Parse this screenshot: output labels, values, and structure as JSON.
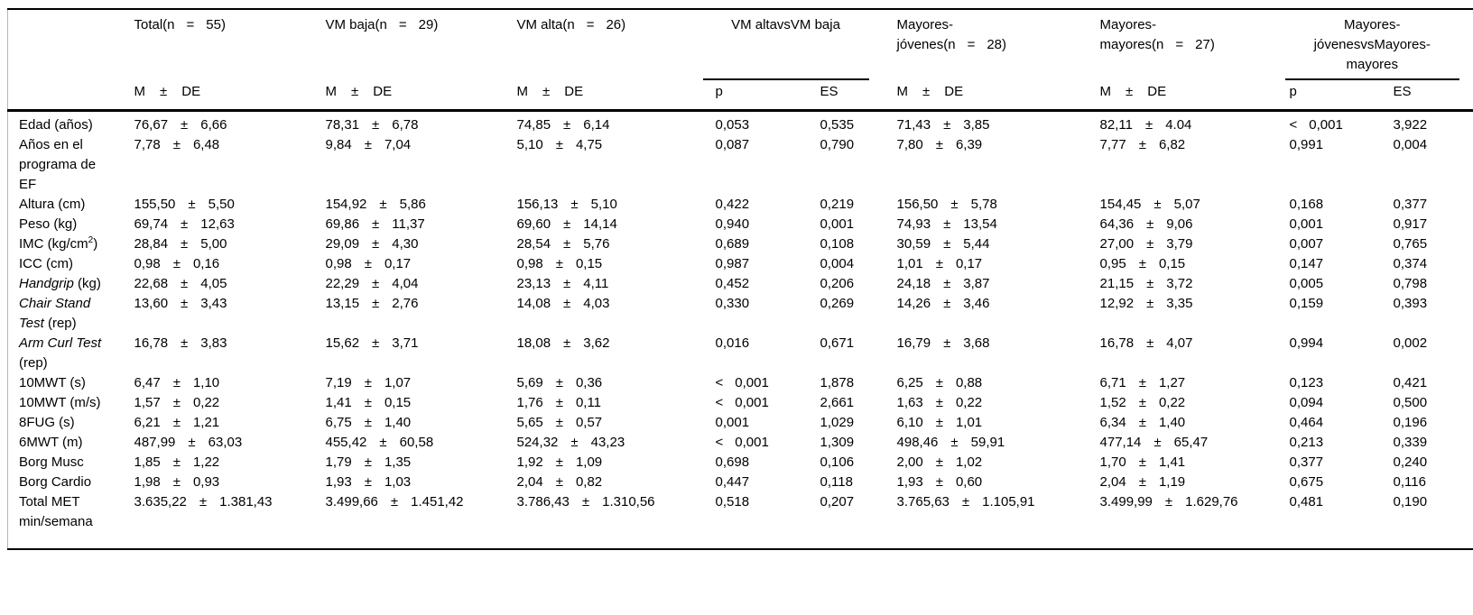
{
  "header": {
    "pm": "±",
    "stat_sub": [
      "M",
      "±",
      "DE"
    ],
    "comp_sub": [
      "p",
      "ES"
    ],
    "groups": {
      "total": {
        "lines": [
          [
            "Total(n",
            "=",
            "55)"
          ]
        ]
      },
      "vm_baja": {
        "lines": [
          [
            "VM baja(n",
            "=",
            "29)"
          ]
        ]
      },
      "vm_alta": {
        "lines": [
          [
            "VM alta(n",
            "=",
            "26)"
          ]
        ]
      },
      "comp1": {
        "lines": [
          [
            "VM altavsVM baja"
          ]
        ]
      },
      "mayores_jovenes": {
        "lines": [
          [
            "Mayores-"
          ],
          [
            "jóvenes(n",
            "=",
            "28)"
          ]
        ]
      },
      "mayores_mayores": {
        "lines": [
          [
            "Mayores-"
          ],
          [
            "mayores(n",
            "=",
            "27)"
          ]
        ]
      },
      "comp2": {
        "lines": [
          [
            "Mayores-"
          ],
          [
            "jóvenesvsMayores-"
          ],
          [
            "mayores"
          ]
        ]
      }
    }
  },
  "rows": [
    {
      "label": [
        {
          "t": "Edad (años)"
        }
      ],
      "stats": [
        {
          "m": "76,67",
          "sd": "6,66"
        },
        {
          "m": "78,31",
          "sd": "6,78"
        },
        {
          "m": "74,85",
          "sd": "6,14"
        },
        {
          "m": "71,43",
          "sd": "3,85"
        },
        {
          "m": "82,11",
          "sd": "4.04"
        }
      ],
      "comp1": {
        "p": "0,053",
        "es": "0,535"
      },
      "comp2": {
        "p": "< 0,001",
        "es": "3,922"
      }
    },
    {
      "label": [
        {
          "t": "Años en el programa de EF"
        }
      ],
      "stats": [
        {
          "m": "7,78",
          "sd": "6,48"
        },
        {
          "m": "9,84",
          "sd": "7,04"
        },
        {
          "m": "5,10",
          "sd": "4,75"
        },
        {
          "m": "7,80",
          "sd": "6,39"
        },
        {
          "m": "7,77",
          "sd": "6,82"
        }
      ],
      "comp1": {
        "p": "0,087",
        "es": "0,790"
      },
      "comp2": {
        "p": "0,991",
        "es": "0,004"
      }
    },
    {
      "label": [
        {
          "t": "Altura (cm)"
        }
      ],
      "stats": [
        {
          "m": "155,50",
          "sd": "5,50"
        },
        {
          "m": "154,92",
          "sd": "5,86"
        },
        {
          "m": "156,13",
          "sd": "5,10"
        },
        {
          "m": "156,50",
          "sd": "5,78"
        },
        {
          "m": "154,45",
          "sd": "5,07"
        }
      ],
      "comp1": {
        "p": "0,422",
        "es": "0,219"
      },
      "comp2": {
        "p": "0,168",
        "es": "0,377"
      }
    },
    {
      "label": [
        {
          "t": "Peso (kg)"
        }
      ],
      "stats": [
        {
          "m": "69,74",
          "sd": "12,63"
        },
        {
          "m": "69,86",
          "sd": "11,37"
        },
        {
          "m": "69,60",
          "sd": "14,14"
        },
        {
          "m": "74,93",
          "sd": "13,54"
        },
        {
          "m": "64,36",
          "sd": "9,06"
        }
      ],
      "comp1": {
        "p": "0,940",
        "es": "0,001"
      },
      "comp2": {
        "p": "0,001",
        "es": "0,917"
      }
    },
    {
      "label": [
        {
          "t": "IMC (kg/cm"
        },
        {
          "t": "2",
          "sup": true
        },
        {
          "t": ")"
        }
      ],
      "stats": [
        {
          "m": "28,84",
          "sd": "5,00"
        },
        {
          "m": "29,09",
          "sd": "4,30"
        },
        {
          "m": "28,54",
          "sd": "5,76"
        },
        {
          "m": "30,59",
          "sd": "5,44"
        },
        {
          "m": "27,00",
          "sd": "3,79"
        }
      ],
      "comp1": {
        "p": "0,689",
        "es": "0,108"
      },
      "comp2": {
        "p": "0,007",
        "es": "0,765"
      }
    },
    {
      "label": [
        {
          "t": "ICC (cm)"
        }
      ],
      "stats": [
        {
          "m": "0,98",
          "sd": "0,16"
        },
        {
          "m": "0,98",
          "sd": "0,17"
        },
        {
          "m": "0,98",
          "sd": "0,15"
        },
        {
          "m": "1,01",
          "sd": "0,17"
        },
        {
          "m": "0,95",
          "sd": "0,15"
        }
      ],
      "comp1": {
        "p": "0,987",
        "es": "0,004"
      },
      "comp2": {
        "p": "0,147",
        "es": "0,374"
      }
    },
    {
      "label": [
        {
          "t": "Handgrip",
          "i": true
        },
        {
          "t": " (kg)"
        }
      ],
      "stats": [
        {
          "m": "22,68",
          "sd": "4,05"
        },
        {
          "m": "22,29",
          "sd": "4,04"
        },
        {
          "m": "23,13",
          "sd": "4,11"
        },
        {
          "m": "24,18",
          "sd": "3,87"
        },
        {
          "m": "21,15",
          "sd": "3,72"
        }
      ],
      "comp1": {
        "p": "0,452",
        "es": "0,206"
      },
      "comp2": {
        "p": "0,005",
        "es": "0,798"
      }
    },
    {
      "label": [
        {
          "t": "Chair Stand Test",
          "i": true
        },
        {
          "t": " (rep)"
        }
      ],
      "stats": [
        {
          "m": "13,60",
          "sd": "3,43"
        },
        {
          "m": "13,15",
          "sd": "2,76"
        },
        {
          "m": "14,08",
          "sd": "4,03"
        },
        {
          "m": "14,26",
          "sd": "3,46"
        },
        {
          "m": "12,92",
          "sd": "3,35"
        }
      ],
      "comp1": {
        "p": "0,330",
        "es": "0,269"
      },
      "comp2": {
        "p": "0,159",
        "es": "0,393"
      }
    },
    {
      "label": [
        {
          "t": "Arm Curl Test",
          "i": true
        },
        {
          "t": " (rep)"
        }
      ],
      "stats": [
        {
          "m": "16,78",
          "sd": "3,83"
        },
        {
          "m": "15,62",
          "sd": "3,71"
        },
        {
          "m": "18,08",
          "sd": "3,62"
        },
        {
          "m": "16,79",
          "sd": "3,68"
        },
        {
          "m": "16,78",
          "sd": "4,07"
        }
      ],
      "comp1": {
        "p": "0,016",
        "es": "0,671"
      },
      "comp2": {
        "p": "0,994",
        "es": "0,002"
      }
    },
    {
      "label": [
        {
          "t": "10MWT (s)"
        }
      ],
      "stats": [
        {
          "m": "6,47",
          "sd": "1,10"
        },
        {
          "m": "7,19",
          "sd": "1,07"
        },
        {
          "m": "5,69",
          "sd": "0,36"
        },
        {
          "m": "6,25",
          "sd": "0,88"
        },
        {
          "m": "6,71",
          "sd": "1,27"
        }
      ],
      "comp1": {
        "p": "< 0,001",
        "es": "1,878"
      },
      "comp2": {
        "p": "0,123",
        "es": "0,421"
      }
    },
    {
      "label": [
        {
          "t": "10MWT (m/s)"
        }
      ],
      "stats": [
        {
          "m": "1,57",
          "sd": "0,22"
        },
        {
          "m": "1,41",
          "sd": "0,15"
        },
        {
          "m": "1,76",
          "sd": "0,11"
        },
        {
          "m": "1,63",
          "sd": "0,22"
        },
        {
          "m": "1,52",
          "sd": "0,22"
        }
      ],
      "comp1": {
        "p": "< 0,001",
        "es": "2,661"
      },
      "comp2": {
        "p": "0,094",
        "es": "0,500"
      }
    },
    {
      "label": [
        {
          "t": "8FUG (s)"
        }
      ],
      "stats": [
        {
          "m": "6,21",
          "sd": "1,21"
        },
        {
          "m": "6,75",
          "sd": "1,40"
        },
        {
          "m": "5,65",
          "sd": "0,57"
        },
        {
          "m": "6,10",
          "sd": "1,01"
        },
        {
          "m": "6,34",
          "sd": "1,40"
        }
      ],
      "comp1": {
        "p": "0,001",
        "es": "1,029"
      },
      "comp2": {
        "p": "0,464",
        "es": "0,196"
      }
    },
    {
      "label": [
        {
          "t": "6MWT (m)"
        }
      ],
      "stats": [
        {
          "m": "487,99",
          "sd": "63,03"
        },
        {
          "m": "455,42",
          "sd": "60,58"
        },
        {
          "m": "524,32",
          "sd": "43,23"
        },
        {
          "m": "498,46",
          "sd": "59,91"
        },
        {
          "m": "477,14",
          "sd": "65,47"
        }
      ],
      "comp1": {
        "p": "< 0,001",
        "es": "1,309"
      },
      "comp2": {
        "p": "0,213",
        "es": "0,339"
      }
    },
    {
      "label": [
        {
          "t": "Borg Musc"
        }
      ],
      "stats": [
        {
          "m": "1,85",
          "sd": "1,22"
        },
        {
          "m": "1,79",
          "sd": "1,35"
        },
        {
          "m": "1,92",
          "sd": "1,09"
        },
        {
          "m": "2,00",
          "sd": "1,02"
        },
        {
          "m": "1,70",
          "sd": "1,41"
        }
      ],
      "comp1": {
        "p": "0,698",
        "es": "0,106"
      },
      "comp2": {
        "p": "0,377",
        "es": "0,240"
      }
    },
    {
      "label": [
        {
          "t": "Borg Cardio"
        }
      ],
      "stats": [
        {
          "m": "1,98",
          "sd": "0,93"
        },
        {
          "m": "1,93",
          "sd": "1,03"
        },
        {
          "m": "2,04",
          "sd": "0,82"
        },
        {
          "m": "1,93",
          "sd": "0,60"
        },
        {
          "m": "2,04",
          "sd": "1,19"
        }
      ],
      "comp1": {
        "p": "0,447",
        "es": "0,118"
      },
      "comp2": {
        "p": "0,675",
        "es": "0,116"
      }
    },
    {
      "label": [
        {
          "t": "Total MET min/semana"
        }
      ],
      "stats": [
        {
          "m": "3.635,22",
          "sd": "1.381,43"
        },
        {
          "m": "3.499,66",
          "sd": "1.451,42"
        },
        {
          "m": "3.786,43",
          "sd": "1.310,56"
        },
        {
          "m": "3.765,63",
          "sd": "1.105,91"
        },
        {
          "m": "3.499,99",
          "sd": "1.629,76"
        }
      ],
      "comp1": {
        "p": "0,518",
        "es": "0,207"
      },
      "comp2": {
        "p": "0,481",
        "es": "0,190"
      }
    }
  ]
}
